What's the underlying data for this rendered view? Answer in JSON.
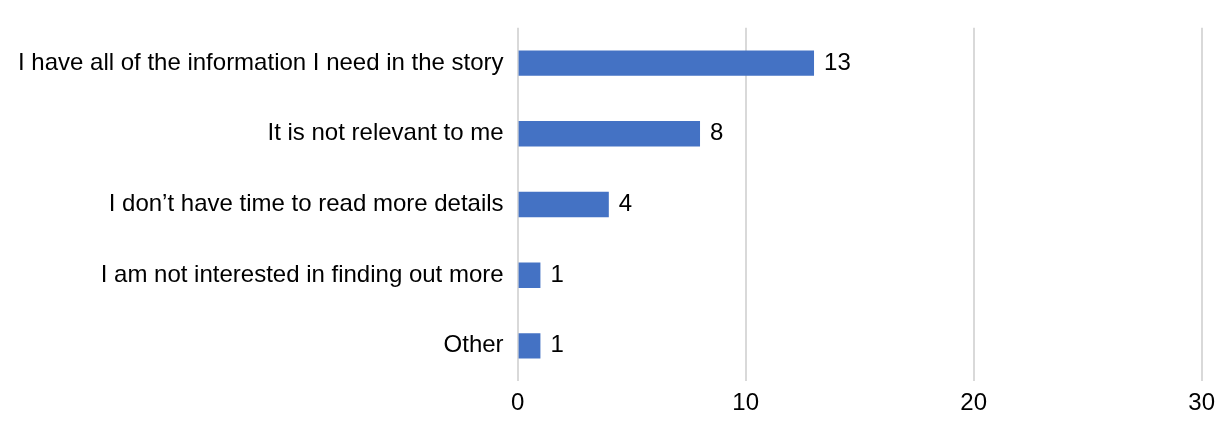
{
  "chart_data": {
    "type": "bar",
    "orientation": "horizontal",
    "categories": [
      "I have all of the information I need in the story",
      "It is not relevant to me",
      "I don’t have time to read more details",
      "I am not interested in finding out more",
      "Other"
    ],
    "values": [
      13,
      8,
      4,
      1,
      1
    ],
    "color": "#4472c4",
    "xlim": [
      0,
      30
    ],
    "xticks": [
      0,
      10,
      20,
      30
    ],
    "grid": "x",
    "data_labels": true
  }
}
